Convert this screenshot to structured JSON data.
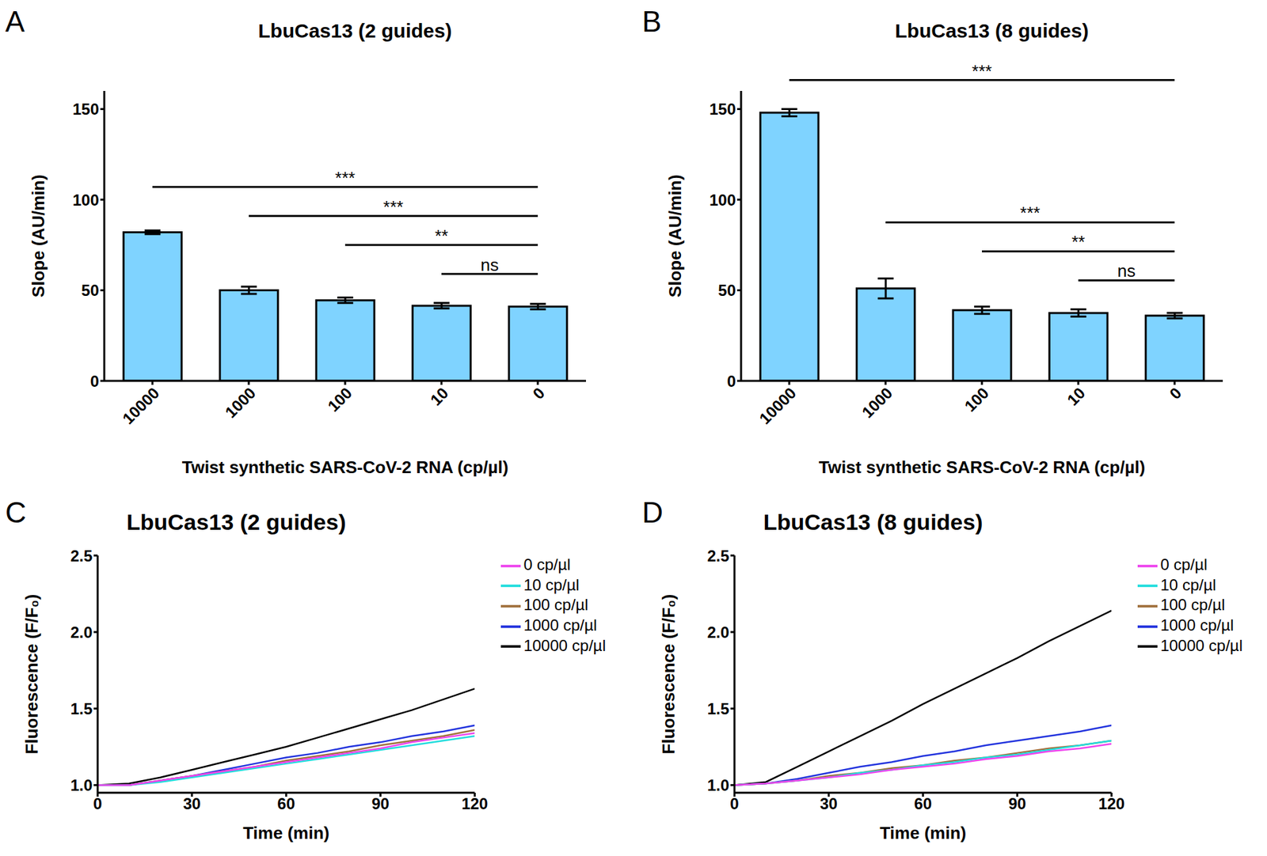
{
  "chart_data": [
    {
      "panel": "A",
      "type": "bar",
      "title": "LbuCas13 (2 guides)",
      "x_label": "Twist synthetic SARS-CoV-2 RNA (cp/µl)",
      "y_label": "Slope (AU/min)",
      "categories": [
        "10000",
        "1000",
        "100",
        "10",
        "0"
      ],
      "values": [
        82,
        50,
        44.5,
        41.5,
        41
      ],
      "errors": [
        1,
        2,
        1.5,
        1.5,
        1.5
      ],
      "color": "#7fd3ff",
      "ylim": [
        0,
        160
      ],
      "yticks": [
        0,
        50,
        100,
        150
      ],
      "annotations": [
        {
          "from": "10000",
          "to": "0",
          "label": "***"
        },
        {
          "from": "1000",
          "to": "0",
          "label": "***"
        },
        {
          "from": "100",
          "to": "0",
          "label": "**"
        },
        {
          "from": "10",
          "to": "0",
          "label": "ns"
        }
      ]
    },
    {
      "panel": "B",
      "type": "bar",
      "title": "LbuCas13 (8 guides)",
      "x_label": "Twist synthetic SARS-CoV-2 RNA (cp/µl)",
      "y_label": "Slope (AU/min)",
      "categories": [
        "10000",
        "1000",
        "100",
        "10",
        "0"
      ],
      "values": [
        148,
        51,
        39,
        37.5,
        36
      ],
      "errors": [
        2,
        5.5,
        2,
        2,
        1.5
      ],
      "color": "#7fd3ff",
      "ylim": [
        0,
        160
      ],
      "yticks": [
        0,
        50,
        100,
        150
      ],
      "annotations": [
        {
          "from": "10000",
          "to": "0",
          "label": "***"
        },
        {
          "from": "1000",
          "to": "0",
          "label": "***"
        },
        {
          "from": "100",
          "to": "0",
          "label": "**"
        },
        {
          "from": "10",
          "to": "0",
          "label": "ns"
        }
      ]
    },
    {
      "panel": "C",
      "type": "line",
      "title": "LbuCas13 (2 guides)",
      "x_label": "Time (min)",
      "y_label": "Fluorescence (F/F₀)",
      "legend": "right",
      "x": [
        0,
        10,
        20,
        30,
        40,
        50,
        60,
        70,
        80,
        90,
        100,
        110,
        120
      ],
      "xlim": [
        0,
        120
      ],
      "xticks": [
        0,
        30,
        60,
        90,
        120
      ],
      "ylim": [
        0.95,
        2.5
      ],
      "yticks": [
        {
          "value": 1,
          "label": "1.0"
        },
        1.5,
        {
          "value": 2,
          "label": "2.0"
        },
        2.5
      ],
      "series": [
        {
          "name": "10000 cp/µl",
          "color": "#000000",
          "values": [
            1.0,
            1.01,
            1.05,
            1.1,
            1.15,
            1.2,
            1.25,
            1.31,
            1.37,
            1.43,
            1.49,
            1.56,
            1.63
          ]
        },
        {
          "name": "1000 cp/µl",
          "color": "#2233dd",
          "values": [
            1.0,
            1.0,
            1.03,
            1.06,
            1.1,
            1.14,
            1.18,
            1.21,
            1.25,
            1.28,
            1.32,
            1.35,
            1.39
          ]
        },
        {
          "name": "100 cp/µl",
          "color": "#a0703c",
          "values": [
            1.0,
            1.0,
            1.03,
            1.06,
            1.09,
            1.12,
            1.16,
            1.19,
            1.22,
            1.26,
            1.29,
            1.32,
            1.36
          ]
        },
        {
          "name": "10 cp/µl",
          "color": "#22dddd",
          "values": [
            1.0,
            1.0,
            1.02,
            1.05,
            1.08,
            1.11,
            1.14,
            1.17,
            1.2,
            1.23,
            1.26,
            1.29,
            1.32
          ]
        },
        {
          "name": "0 cp/µl",
          "color": "#ee44ee",
          "values": [
            1.0,
            1.0,
            1.03,
            1.06,
            1.09,
            1.12,
            1.15,
            1.18,
            1.21,
            1.24,
            1.28,
            1.31,
            1.34
          ]
        }
      ]
    },
    {
      "panel": "D",
      "type": "line",
      "title": "LbuCas13 (8 guides)",
      "x_label": "Time (min)",
      "y_label": "Fluorescence (F/F₀)",
      "legend": "right",
      "x": [
        0,
        10,
        20,
        30,
        40,
        50,
        60,
        70,
        80,
        90,
        100,
        110,
        120
      ],
      "xlim": [
        0,
        120
      ],
      "xticks": [
        0,
        30,
        60,
        90,
        120
      ],
      "ylim": [
        0.95,
        2.5
      ],
      "yticks": [
        {
          "value": 1,
          "label": "1.0"
        },
        1.5,
        {
          "value": 2,
          "label": "2.0"
        },
        2.5
      ],
      "series": [
        {
          "name": "10000 cp/µl",
          "color": "#000000",
          "values": [
            1.0,
            1.02,
            1.12,
            1.22,
            1.32,
            1.42,
            1.53,
            1.63,
            1.73,
            1.83,
            1.94,
            2.04,
            2.14
          ]
        },
        {
          "name": "1000 cp/µl",
          "color": "#2233dd",
          "values": [
            1.0,
            1.01,
            1.04,
            1.08,
            1.12,
            1.15,
            1.19,
            1.22,
            1.26,
            1.29,
            1.32,
            1.35,
            1.39
          ]
        },
        {
          "name": "100 cp/µl",
          "color": "#a0703c",
          "values": [
            1.0,
            1.01,
            1.03,
            1.06,
            1.08,
            1.11,
            1.13,
            1.16,
            1.18,
            1.21,
            1.24,
            1.26,
            1.29
          ]
        },
        {
          "name": "10 cp/µl",
          "color": "#22dddd",
          "values": [
            1.0,
            1.01,
            1.03,
            1.05,
            1.08,
            1.1,
            1.13,
            1.15,
            1.18,
            1.2,
            1.23,
            1.26,
            1.29
          ]
        },
        {
          "name": "0 cp/µl",
          "color": "#ee44ee",
          "values": [
            1.0,
            1.01,
            1.03,
            1.05,
            1.07,
            1.1,
            1.12,
            1.14,
            1.17,
            1.19,
            1.22,
            1.24,
            1.27
          ]
        }
      ]
    }
  ]
}
